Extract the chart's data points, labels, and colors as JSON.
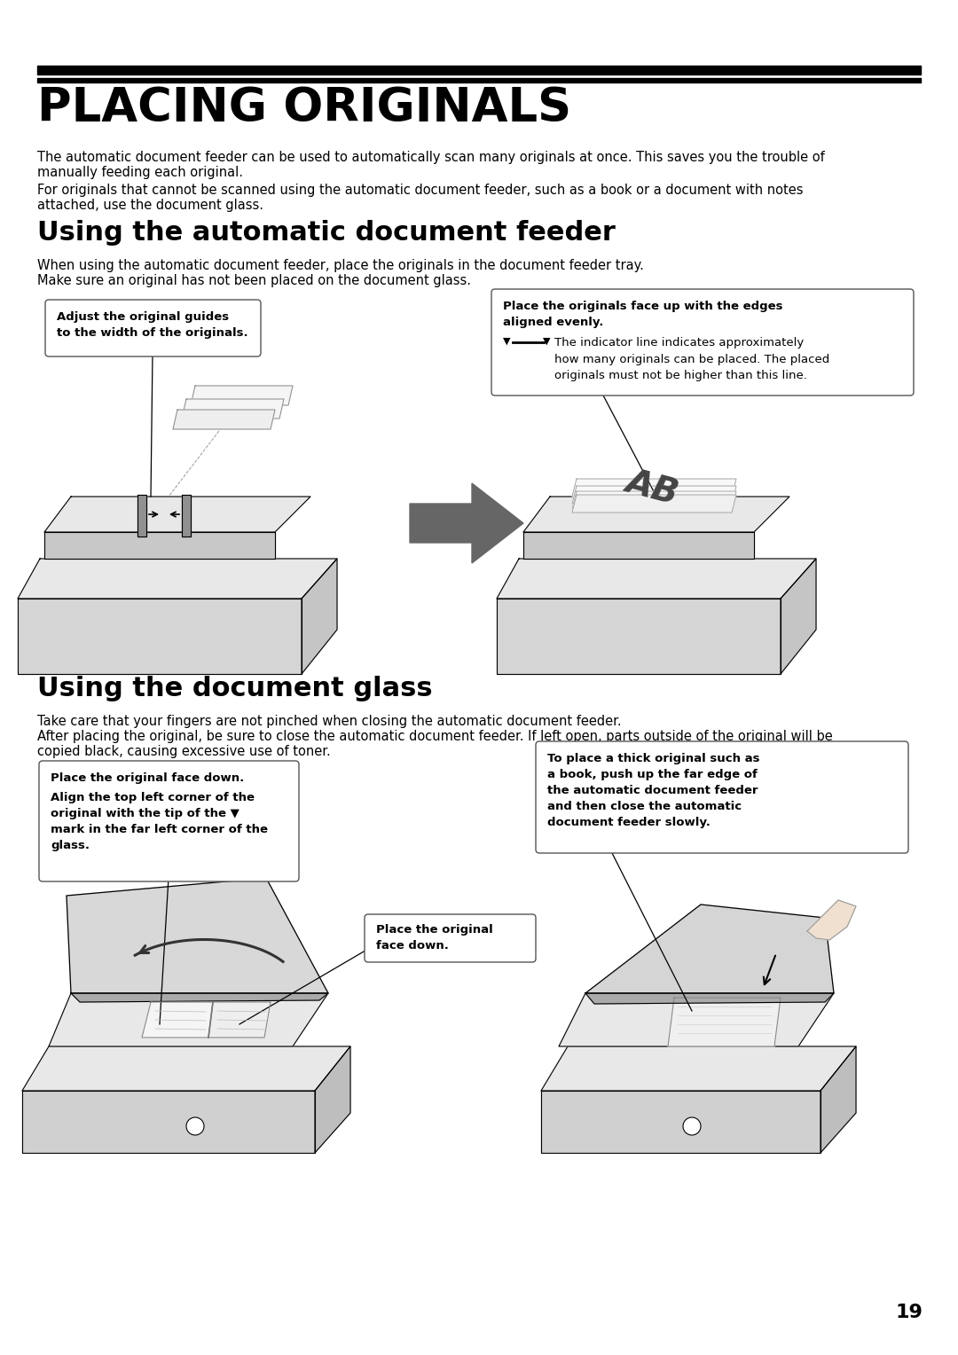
{
  "bg_color": "#ffffff",
  "page_number": "19",
  "title": "PLACING ORIGINALS",
  "intro_text_1": "The automatic document feeder can be used to automatically scan many originals at once. This saves you the trouble of",
  "intro_text_1b": "manually feeding each original.",
  "intro_text_2": "For originals that cannot be scanned using the automatic document feeder, such as a book or a document with notes",
  "intro_text_2b": "attached, use the document glass.",
  "section1_title": "Using the automatic document feeder",
  "section1_text1": "When using the automatic document feeder, place the originals in the document feeder tray.",
  "section1_text2": "Make sure an original has not been placed on the document glass.",
  "callout1_line1": "Adjust the original guides",
  "callout1_line2": "to the width of the originals.",
  "callout2_bold1": "Place the originals face up with the edges",
  "callout2_bold2": "aligned evenly.",
  "callout2_normal": "The indicator line indicates approximately\nhow many originals can be placed. The placed\noriginals must not be higher than this line.",
  "section2_title": "Using the document glass",
  "section2_text1": "Take care that your fingers are not pinched when closing the automatic document feeder.",
  "section2_text2": "After placing the original, be sure to close the automatic document feeder. If left open, parts outside of the original will be",
  "section2_text2b": "copied black, causing excessive use of toner.",
  "callout3_bold": "Place the original face down.",
  "callout3_normal": "Align the top left corner of the\noriginal with the tip of the ▼\nmark in the far left corner of the\nglass.",
  "callout4_line1": "Place the original",
  "callout4_line2": "face down.",
  "callout5_text": "To place a thick original such as\na book, push up the far edge of\nthe automatic document feeder\nand then close the automatic\ndocument feeder slowly.",
  "text_color": "#000000",
  "gray_light": "#e8e8e8",
  "gray_mid": "#cccccc",
  "gray_dark": "#aaaaaa",
  "arrow_gray": "#666666"
}
